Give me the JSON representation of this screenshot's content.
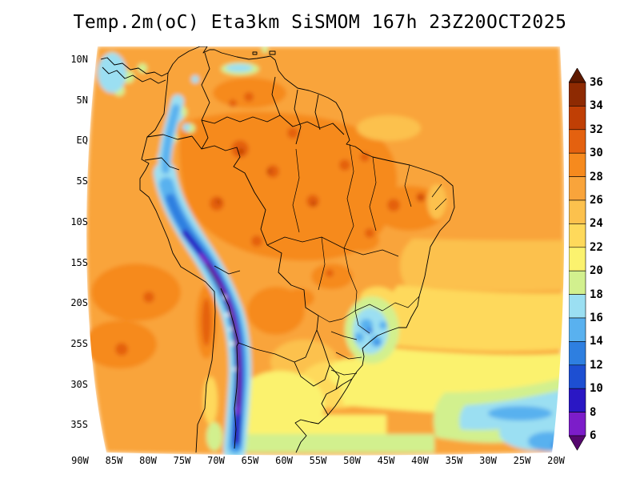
{
  "title": "Temp.2m(oC) Eta3km SiSMOM 167h 23Z20OCT2025",
  "axes": {
    "lat_labels": [
      "10N",
      "5N",
      "EQ",
      "5S",
      "10S",
      "15S",
      "20S",
      "25S",
      "30S",
      "35S"
    ],
    "lon_labels": [
      "90W",
      "85W",
      "80W",
      "75W",
      "70W",
      "65W",
      "60W",
      "55W",
      "50W",
      "45W",
      "40W",
      "35W",
      "30W",
      "25W",
      "20W"
    ]
  },
  "colorbar": {
    "labels": [
      "36",
      "34",
      "32",
      "30",
      "28",
      "26",
      "24",
      "22",
      "20",
      "18",
      "16",
      "14",
      "12",
      "10",
      "8",
      "6"
    ],
    "colors": [
      "#5e1900",
      "#8e2a02",
      "#c03f05",
      "#e4610f",
      "#f68a1e",
      "#f9a43b",
      "#fcc14d",
      "#fed95b",
      "#fbf26e",
      "#d2f08e",
      "#9bdff2",
      "#59b1ef",
      "#2e7fe0",
      "#1d4fd2",
      "#2a17c4",
      "#7c1dc9",
      "#55076e"
    ]
  },
  "map": {
    "outline_color": "#000000",
    "snow_speck_color": "#ffffff",
    "page_background": "#ffffff"
  },
  "chart_data": {
    "type": "heatmap",
    "title": "Temp.2m(oC) Eta3km SiSMOM 167h 23Z20OCT2025",
    "variable": "Temp.2m",
    "units": "oC",
    "model_label": "Eta3km SiSMOM",
    "forecast_hour_label": "167h",
    "datetime_label": "23Z20OCT2025",
    "colorbar_levels": [
      36,
      34,
      32,
      30,
      28,
      26,
      24,
      22,
      20,
      18,
      16,
      14,
      12,
      10,
      8,
      6
    ],
    "lat_ticks": [
      "10N",
      "5N",
      "EQ",
      "5S",
      "10S",
      "15S",
      "20S",
      "25S",
      "30S",
      "35S"
    ],
    "lon_ticks": [
      "90W",
      "85W",
      "80W",
      "75W",
      "70W",
      "65W",
      "60W",
      "55W",
      "50W",
      "45W",
      "40W",
      "35W",
      "30W",
      "25W",
      "20W"
    ],
    "legend_position": "right",
    "approx_readings": [
      {
        "region": "Amazon basin",
        "temp_c": "28-32"
      },
      {
        "region": "Venezuela llanos",
        "temp_c": "28-32"
      },
      {
        "region": "Northeast Brazil interior",
        "temp_c": "28-32"
      },
      {
        "region": "Tropical Atlantic and Caribbean",
        "temp_c": "26-28"
      },
      {
        "region": "Andes cordillera",
        "temp_c": "<6-14"
      },
      {
        "region": "Southeast Brazil highlands",
        "temp_c": "12-20"
      },
      {
        "region": "Pampas / Argentina",
        "temp_c": "18-22"
      },
      {
        "region": "South Atlantic 30S-35S",
        "temp_c": "16-22"
      },
      {
        "region": "Pacific off Peru and Chile",
        "temp_c": "26-30"
      }
    ]
  }
}
